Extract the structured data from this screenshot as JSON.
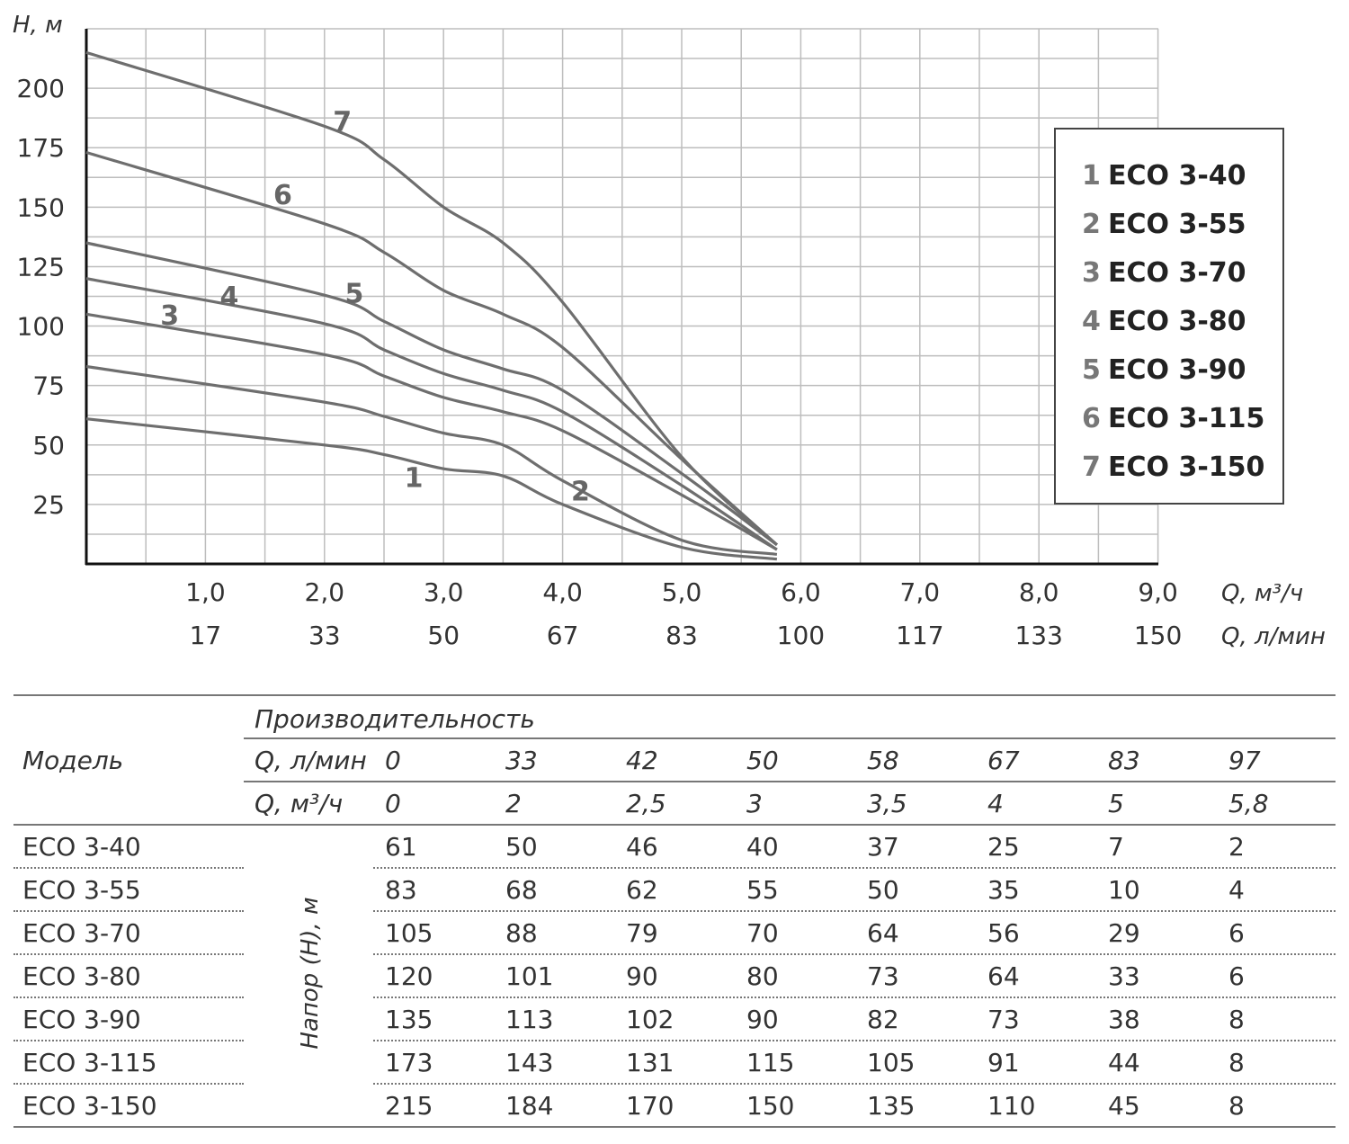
{
  "chart_data": {
    "type": "line",
    "ylabel": "H, м",
    "yticks": [
      25,
      50,
      75,
      100,
      125,
      150,
      175,
      200
    ],
    "ylim": [
      0,
      225
    ],
    "xlim": [
      0,
      9
    ],
    "x_m3h_label": "Q, м³/ч",
    "x_lmin_label": "Q, л/мин",
    "xticks_m3h": [
      "1,0",
      "2,0",
      "3,0",
      "4,0",
      "5,0",
      "6,0",
      "7,0",
      "8,0",
      "9,0"
    ],
    "xticks_lmin": [
      "17",
      "33",
      "50",
      "67",
      "83",
      "100",
      "117",
      "133",
      "150"
    ],
    "grid": true,
    "legend_position": "right",
    "x": [
      0,
      2,
      2.5,
      3,
      3.5,
      4,
      5,
      5.8
    ],
    "series": [
      {
        "num": "1",
        "name": "ECO 3-40",
        "values": [
          61,
          50,
          46,
          40,
          37,
          25,
          7,
          2
        ]
      },
      {
        "num": "2",
        "name": "ECO 3-55",
        "values": [
          83,
          68,
          62,
          55,
          50,
          35,
          10,
          4
        ]
      },
      {
        "num": "3",
        "name": "ECO 3-70",
        "values": [
          105,
          88,
          79,
          70,
          64,
          56,
          29,
          6
        ]
      },
      {
        "num": "4",
        "name": "ECO 3-80",
        "values": [
          120,
          101,
          90,
          80,
          73,
          64,
          33,
          6
        ]
      },
      {
        "num": "5",
        "name": "ECO 3-90",
        "values": [
          135,
          113,
          102,
          90,
          82,
          73,
          38,
          8
        ]
      },
      {
        "num": "6",
        "name": "ECO 3-115",
        "values": [
          173,
          143,
          131,
          115,
          105,
          91,
          44,
          8
        ]
      },
      {
        "num": "7",
        "name": "ECO 3-150",
        "values": [
          215,
          184,
          170,
          150,
          135,
          110,
          45,
          8
        ]
      }
    ]
  },
  "table": {
    "model_header": "Модель",
    "perf_header": "Производительность",
    "q_lmin_label": "Q, л/мин",
    "q_m3h_label": "Q, м³/ч",
    "q_lmin": [
      "0",
      "33",
      "42",
      "50",
      "58",
      "67",
      "83",
      "97"
    ],
    "q_m3h": [
      "0",
      "2",
      "2,5",
      "3",
      "3,5",
      "4",
      "5",
      "5,8"
    ],
    "head_label": "Напор (H), м",
    "rows": [
      {
        "model": "ECO 3-40",
        "values": [
          "61",
          "50",
          "46",
          "40",
          "37",
          "25",
          "7",
          "2"
        ]
      },
      {
        "model": "ECO 3-55",
        "values": [
          "83",
          "68",
          "62",
          "55",
          "50",
          "35",
          "10",
          "4"
        ]
      },
      {
        "model": "ECO 3-70",
        "values": [
          "105",
          "88",
          "79",
          "70",
          "64",
          "56",
          "29",
          "6"
        ]
      },
      {
        "model": "ECO 3-80",
        "values": [
          "120",
          "101",
          "90",
          "80",
          "73",
          "64",
          "33",
          "6"
        ]
      },
      {
        "model": "ECO 3-90",
        "values": [
          "135",
          "113",
          "102",
          "90",
          "82",
          "73",
          "38",
          "8"
        ]
      },
      {
        "model": "ECO 3-115",
        "values": [
          "173",
          "143",
          "131",
          "115",
          "105",
          "91",
          "44",
          "8"
        ]
      },
      {
        "model": "ECO 3-150",
        "values": [
          "215",
          "184",
          "170",
          "150",
          "135",
          "110",
          "45",
          "8"
        ]
      }
    ]
  }
}
